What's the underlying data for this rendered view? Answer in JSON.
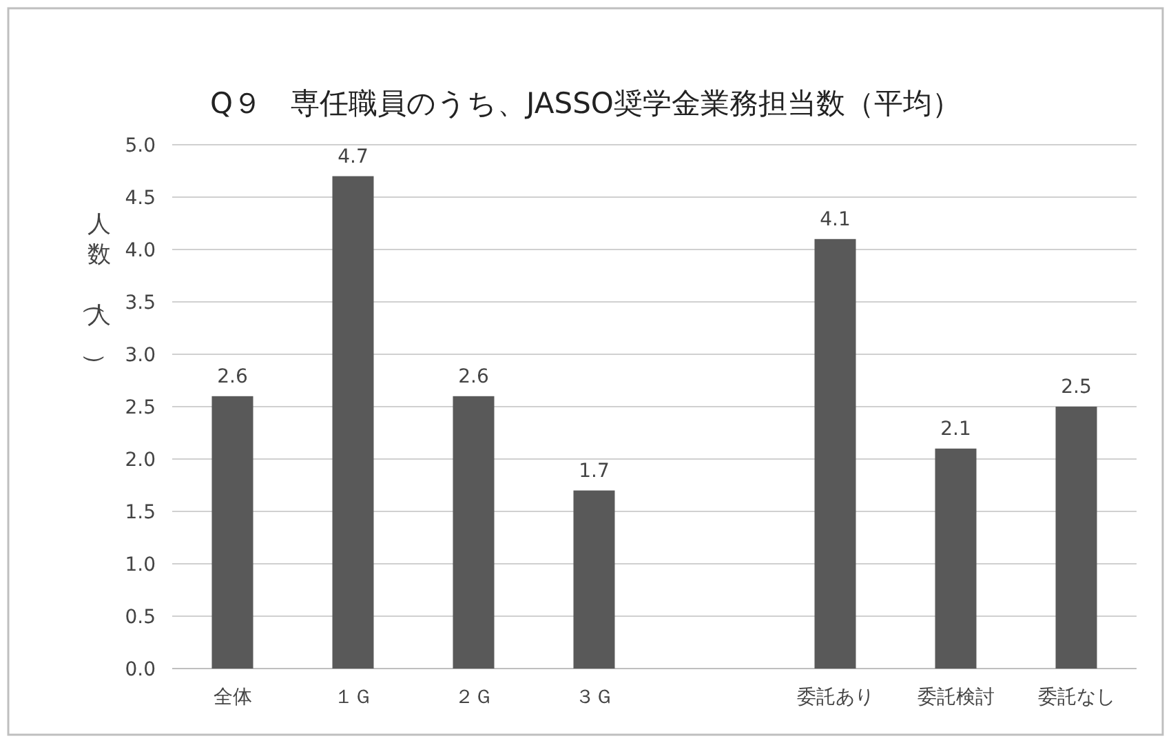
{
  "chart_data": {
    "type": "bar",
    "title": "Q９　専任職員のうち、JASSO奨学金業務担当数（平均）",
    "ylabel": "人数（人）",
    "categories": [
      "全体",
      "１Ｇ",
      "２Ｇ",
      "３Ｇ",
      null,
      "委託あり",
      "委託検討",
      "委託なし"
    ],
    "values": [
      2.6,
      4.7,
      2.6,
      1.7,
      null,
      4.1,
      2.1,
      2.5
    ],
    "color": "#595959",
    "ylim": [
      0,
      5
    ],
    "yticks": [
      {
        "value": 0,
        "label": "0.0"
      },
      {
        "value": 0.5,
        "label": "0.5"
      },
      {
        "value": 1,
        "label": "1.0"
      },
      {
        "value": 1.5,
        "label": "1.5"
      },
      {
        "value": 2,
        "label": "2.0"
      },
      {
        "value": 2.5,
        "label": "2.5"
      },
      {
        "value": 3,
        "label": "3.0"
      },
      {
        "value": 3.5,
        "label": "3.5"
      },
      {
        "value": 4,
        "label": "4.0"
      },
      {
        "value": 4.5,
        "label": "4.5"
      },
      {
        "value": 5,
        "label": "5.0"
      }
    ],
    "grid": "y",
    "data_labels": true
  }
}
